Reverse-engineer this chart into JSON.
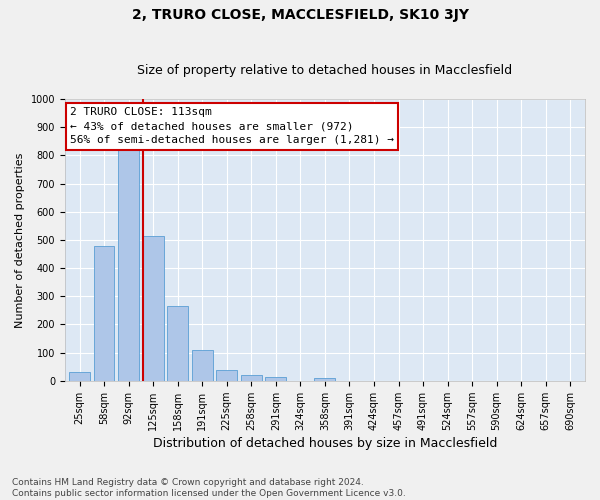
{
  "title1": "2, TRURO CLOSE, MACCLESFIELD, SK10 3JY",
  "title2": "Size of property relative to detached houses in Macclesfield",
  "xlabel": "Distribution of detached houses by size in Macclesfield",
  "ylabel": "Number of detached properties",
  "categories": [
    "25sqm",
    "58sqm",
    "92sqm",
    "125sqm",
    "158sqm",
    "191sqm",
    "225sqm",
    "258sqm",
    "291sqm",
    "324sqm",
    "358sqm",
    "391sqm",
    "424sqm",
    "457sqm",
    "491sqm",
    "524sqm",
    "557sqm",
    "590sqm",
    "624sqm",
    "657sqm",
    "690sqm"
  ],
  "values": [
    33,
    478,
    820,
    515,
    265,
    110,
    40,
    22,
    12,
    0,
    10,
    0,
    0,
    0,
    0,
    0,
    0,
    0,
    0,
    0,
    0
  ],
  "bar_color": "#aec6e8",
  "bar_edge_color": "#5a9fd4",
  "vline_position": 2.57,
  "vline_color": "#cc0000",
  "annotation_text": "2 TRURO CLOSE: 113sqm\n← 43% of detached houses are smaller (972)\n56% of semi-detached houses are larger (1,281) →",
  "annotation_box_color": "#ffffff",
  "annotation_box_edge": "#cc0000",
  "ylim": [
    0,
    1000
  ],
  "yticks": [
    0,
    100,
    200,
    300,
    400,
    500,
    600,
    700,
    800,
    900,
    1000
  ],
  "footnote": "Contains HM Land Registry data © Crown copyright and database right 2024.\nContains public sector information licensed under the Open Government Licence v3.0.",
  "background_color": "#dde8f4",
  "grid_color": "#ffffff",
  "fig_background": "#f0f0f0",
  "title1_fontsize": 10,
  "title2_fontsize": 9,
  "xlabel_fontsize": 9,
  "ylabel_fontsize": 8,
  "tick_fontsize": 7,
  "annotation_fontsize": 8,
  "footnote_fontsize": 6.5
}
